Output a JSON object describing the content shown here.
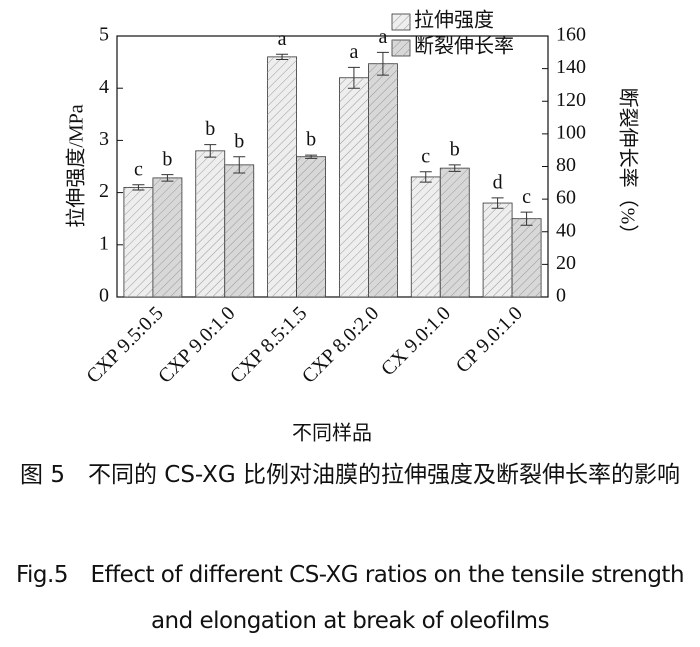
{
  "chart_data": {
    "type": "bar",
    "categories": [
      "CXP 9.5:0.5",
      "CXP 9.0:1.0",
      "CXP 8.5:1.5",
      "CXP 8.0:2.0",
      "CX 9.0:1.0",
      "CP 9.0:1.0"
    ],
    "xlabel": "不同样品",
    "ylabel": "拉伸强度/MPa",
    "y2label": "断裂伸长率（%）",
    "ylim": [
      0,
      5
    ],
    "yticks": [
      0,
      1,
      2,
      3,
      4,
      5
    ],
    "y2lim": [
      0,
      160
    ],
    "y2ticks": [
      0,
      20,
      40,
      60,
      80,
      100,
      120,
      140,
      160
    ],
    "legend": "top-right",
    "series": [
      {
        "name": "拉伸强度",
        "color": "#eeeeee",
        "values": [
          2.1,
          2.8,
          4.6,
          4.2,
          2.3,
          1.8
        ],
        "errors": [
          0.05,
          0.12,
          0.05,
          0.2,
          0.1,
          0.1
        ],
        "letters": [
          "c",
          "b",
          "a",
          "a",
          "c",
          "d"
        ]
      },
      {
        "name": "断裂伸长率",
        "color": "#d8d8d8",
        "axis": "y2",
        "values": [
          73,
          81,
          86,
          143,
          79,
          48
        ],
        "errors": [
          2,
          5,
          1,
          7,
          2,
          4
        ],
        "letters": [
          "b",
          "b",
          "b",
          "a",
          "b",
          "c"
        ]
      }
    ]
  },
  "caption": {
    "zh": "图 5　不同的 CS-XG 比例对油膜的拉伸强度及断裂伸长率的影响",
    "en": "Fig.5　Effect of different CS-XG ratios on the tensile strength and elongation at break of oleofilms"
  }
}
